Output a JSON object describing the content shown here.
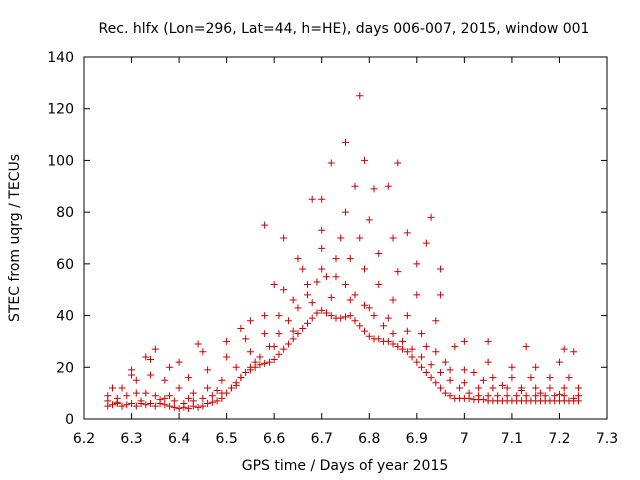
{
  "chart_data": {
    "type": "scatter",
    "title": "Rec. hlfx (Lon=296, Lat=44, h=HE), days 006-007, 2015, window 001",
    "xlabel": "GPS time / Days of year 2015",
    "ylabel": "STEC from uqrg / TECUs",
    "xlim": [
      6.2,
      7.3
    ],
    "ylim": [
      0,
      140
    ],
    "xticks": [
      "6.2",
      "6.3",
      "6.4",
      "6.5",
      "6.6",
      "6.7",
      "6.8",
      "6.9",
      "7",
      "7.1",
      "7.2",
      "7.3"
    ],
    "yticks": [
      "0",
      "20",
      "40",
      "60",
      "80",
      "100",
      "120",
      "140"
    ],
    "grid": false,
    "legend": "none",
    "marker": "plus",
    "color": "#cc0000",
    "points": [
      [
        6.25,
        5
      ],
      [
        6.26,
        5.5
      ],
      [
        6.27,
        6
      ],
      [
        6.28,
        5
      ],
      [
        6.29,
        5.5
      ],
      [
        6.3,
        6
      ],
      [
        6.31,
        5
      ],
      [
        6.32,
        6
      ],
      [
        6.33,
        5.5
      ],
      [
        6.34,
        6
      ],
      [
        6.35,
        5
      ],
      [
        6.36,
        6
      ],
      [
        6.37,
        5.5
      ],
      [
        6.38,
        5
      ],
      [
        6.39,
        4.5
      ],
      [
        6.4,
        4
      ],
      [
        6.41,
        4.5
      ],
      [
        6.42,
        4
      ],
      [
        6.43,
        5
      ],
      [
        6.44,
        4.5
      ],
      [
        6.45,
        5
      ],
      [
        6.46,
        6
      ],
      [
        6.47,
        6.5
      ],
      [
        6.48,
        7
      ],
      [
        6.49,
        8
      ],
      [
        6.5,
        10
      ],
      [
        6.51,
        12
      ],
      [
        6.52,
        14
      ],
      [
        6.53,
        16
      ],
      [
        6.54,
        18
      ],
      [
        6.55,
        19
      ],
      [
        6.56,
        20
      ],
      [
        6.57,
        21
      ],
      [
        6.58,
        21.5
      ],
      [
        6.59,
        22
      ],
      [
        6.6,
        23
      ],
      [
        6.61,
        25
      ],
      [
        6.62,
        27
      ],
      [
        6.63,
        29
      ],
      [
        6.64,
        31
      ],
      [
        6.65,
        33
      ],
      [
        6.66,
        35
      ],
      [
        6.67,
        37
      ],
      [
        6.68,
        39
      ],
      [
        6.69,
        41
      ],
      [
        6.7,
        42
      ],
      [
        6.71,
        41
      ],
      [
        6.72,
        40
      ],
      [
        6.73,
        39
      ],
      [
        6.74,
        39
      ],
      [
        6.75,
        39.5
      ],
      [
        6.76,
        40
      ],
      [
        6.77,
        38
      ],
      [
        6.78,
        36
      ],
      [
        6.79,
        34
      ],
      [
        6.8,
        32
      ],
      [
        6.81,
        31
      ],
      [
        6.82,
        31
      ],
      [
        6.83,
        30
      ],
      [
        6.84,
        30
      ],
      [
        6.85,
        29
      ],
      [
        6.86,
        28
      ],
      [
        6.87,
        27
      ],
      [
        6.88,
        26
      ],
      [
        6.89,
        24
      ],
      [
        6.9,
        22
      ],
      [
        6.91,
        20
      ],
      [
        6.92,
        18
      ],
      [
        6.93,
        16
      ],
      [
        6.94,
        14
      ],
      [
        6.95,
        12
      ],
      [
        6.96,
        10
      ],
      [
        6.97,
        9
      ],
      [
        6.98,
        8
      ],
      [
        6.99,
        8
      ],
      [
        7.0,
        8
      ],
      [
        7.01,
        8
      ],
      [
        7.02,
        7.5
      ],
      [
        7.03,
        7.5
      ],
      [
        7.04,
        7.5
      ],
      [
        7.05,
        7
      ],
      [
        7.06,
        7
      ],
      [
        7.07,
        7
      ],
      [
        7.08,
        7
      ],
      [
        7.09,
        7
      ],
      [
        7.1,
        7
      ],
      [
        7.11,
        7
      ],
      [
        7.12,
        7
      ],
      [
        7.13,
        7
      ],
      [
        7.14,
        7
      ],
      [
        7.15,
        7
      ],
      [
        7.16,
        7
      ],
      [
        7.17,
        7
      ],
      [
        7.18,
        7
      ],
      [
        7.19,
        7
      ],
      [
        7.2,
        7
      ],
      [
        7.21,
        7
      ],
      [
        7.22,
        7
      ],
      [
        7.23,
        7
      ],
      [
        7.24,
        7
      ],
      [
        6.25,
        7
      ],
      [
        6.27,
        8
      ],
      [
        6.29,
        9
      ],
      [
        6.31,
        10
      ],
      [
        6.33,
        10
      ],
      [
        6.35,
        9
      ],
      [
        6.37,
        8
      ],
      [
        6.39,
        7
      ],
      [
        6.41,
        6
      ],
      [
        6.43,
        7
      ],
      [
        6.45,
        8
      ],
      [
        6.47,
        9
      ],
      [
        6.49,
        10
      ],
      [
        6.51,
        12
      ],
      [
        6.53,
        16
      ],
      [
        6.55,
        20
      ],
      [
        6.57,
        24
      ],
      [
        6.59,
        28
      ],
      [
        6.61,
        33
      ],
      [
        6.63,
        38
      ],
      [
        6.65,
        43
      ],
      [
        6.67,
        48
      ],
      [
        6.69,
        53
      ],
      [
        6.71,
        55
      ],
      [
        6.73,
        55
      ],
      [
        6.75,
        52
      ],
      [
        6.77,
        48
      ],
      [
        6.79,
        44
      ],
      [
        6.81,
        40
      ],
      [
        6.83,
        36
      ],
      [
        6.85,
        33
      ],
      [
        6.87,
        30
      ],
      [
        6.89,
        27
      ],
      [
        6.91,
        24
      ],
      [
        6.93,
        21
      ],
      [
        6.95,
        18
      ],
      [
        6.97,
        15
      ],
      [
        6.99,
        12
      ],
      [
        7.01,
        10
      ],
      [
        7.03,
        9
      ],
      [
        7.05,
        9
      ],
      [
        7.07,
        9
      ],
      [
        7.09,
        9
      ],
      [
        7.11,
        9
      ],
      [
        7.13,
        9
      ],
      [
        7.15,
        9
      ],
      [
        7.17,
        9
      ],
      [
        7.19,
        9
      ],
      [
        7.21,
        9
      ],
      [
        7.23,
        8
      ],
      [
        6.25,
        9
      ],
      [
        6.28,
        12
      ],
      [
        6.31,
        15
      ],
      [
        6.34,
        17
      ],
      [
        6.37,
        15
      ],
      [
        6.4,
        12
      ],
      [
        6.43,
        10
      ],
      [
        6.46,
        12
      ],
      [
        6.49,
        15
      ],
      [
        6.52,
        20
      ],
      [
        6.55,
        26
      ],
      [
        6.58,
        33
      ],
      [
        6.61,
        40
      ],
      [
        6.64,
        46
      ],
      [
        6.67,
        52
      ],
      [
        6.7,
        58
      ],
      [
        6.73,
        62
      ],
      [
        6.76,
        62
      ],
      [
        6.79,
        58
      ],
      [
        6.82,
        52
      ],
      [
        6.85,
        46
      ],
      [
        6.88,
        40
      ],
      [
        6.91,
        33
      ],
      [
        6.94,
        26
      ],
      [
        6.97,
        19
      ],
      [
        7.0,
        14
      ],
      [
        7.03,
        12
      ],
      [
        7.06,
        12
      ],
      [
        7.09,
        12
      ],
      [
        7.12,
        12
      ],
      [
        7.15,
        12
      ],
      [
        7.18,
        12
      ],
      [
        7.21,
        12
      ],
      [
        7.24,
        12
      ],
      [
        6.26,
        12
      ],
      [
        6.3,
        17
      ],
      [
        6.34,
        23
      ],
      [
        6.38,
        20
      ],
      [
        6.42,
        16
      ],
      [
        6.46,
        19
      ],
      [
        6.5,
        24
      ],
      [
        6.54,
        31
      ],
      [
        6.58,
        40
      ],
      [
        6.62,
        50
      ],
      [
        6.66,
        58
      ],
      [
        6.7,
        66
      ],
      [
        6.74,
        70
      ],
      [
        6.78,
        70
      ],
      [
        6.82,
        64
      ],
      [
        6.86,
        57
      ],
      [
        6.9,
        48
      ],
      [
        6.94,
        38
      ],
      [
        6.98,
        28
      ],
      [
        7.02,
        18
      ],
      [
        7.06,
        16
      ],
      [
        7.1,
        16
      ],
      [
        7.14,
        16
      ],
      [
        7.18,
        16
      ],
      [
        7.22,
        16
      ],
      [
        6.3,
        19
      ],
      [
        6.35,
        27
      ],
      [
        6.4,
        22
      ],
      [
        6.45,
        26
      ],
      [
        6.5,
        30
      ],
      [
        6.55,
        38
      ],
      [
        6.6,
        52
      ],
      [
        6.65,
        62
      ],
      [
        6.7,
        73
      ],
      [
        6.75,
        80
      ],
      [
        6.8,
        77
      ],
      [
        6.85,
        70
      ],
      [
        6.9,
        60
      ],
      [
        6.95,
        48
      ],
      [
        7.0,
        30
      ],
      [
        7.05,
        22
      ],
      [
        7.1,
        20
      ],
      [
        7.15,
        20
      ],
      [
        7.2,
        22
      ],
      [
        6.33,
        24
      ],
      [
        6.44,
        29
      ],
      [
        6.53,
        35
      ],
      [
        6.58,
        75
      ],
      [
        6.62,
        70
      ],
      [
        6.68,
        85
      ],
      [
        6.7,
        85
      ],
      [
        6.72,
        99
      ],
      [
        6.75,
        107
      ],
      [
        6.77,
        90
      ],
      [
        6.78,
        125
      ],
      [
        6.79,
        100
      ],
      [
        6.81,
        89
      ],
      [
        6.84,
        90
      ],
      [
        6.86,
        99
      ],
      [
        6.88,
        72
      ],
      [
        6.92,
        68
      ],
      [
        6.93,
        78
      ],
      [
        6.95,
        58
      ],
      [
        7.05,
        30
      ],
      [
        7.13,
        28
      ],
      [
        7.21,
        27
      ],
      [
        7.23,
        26
      ],
      [
        6.27,
        6.5
      ],
      [
        6.32,
        7
      ],
      [
        6.36,
        7.5
      ],
      [
        6.38,
        9
      ],
      [
        6.42,
        8
      ],
      [
        6.48,
        11
      ],
      [
        6.52,
        13
      ],
      [
        6.56,
        22
      ],
      [
        6.6,
        28
      ],
      [
        6.64,
        34
      ],
      [
        6.68,
        45
      ],
      [
        6.72,
        47
      ],
      [
        6.76,
        46
      ],
      [
        6.8,
        43
      ],
      [
        6.84,
        39
      ],
      [
        6.88,
        34
      ],
      [
        6.92,
        28
      ],
      [
        6.96,
        22
      ],
      [
        7.0,
        19
      ],
      [
        7.04,
        15
      ],
      [
        7.08,
        13
      ],
      [
        7.12,
        11
      ],
      [
        7.16,
        10
      ],
      [
        7.2,
        9.5
      ],
      [
        7.24,
        9
      ]
    ]
  }
}
